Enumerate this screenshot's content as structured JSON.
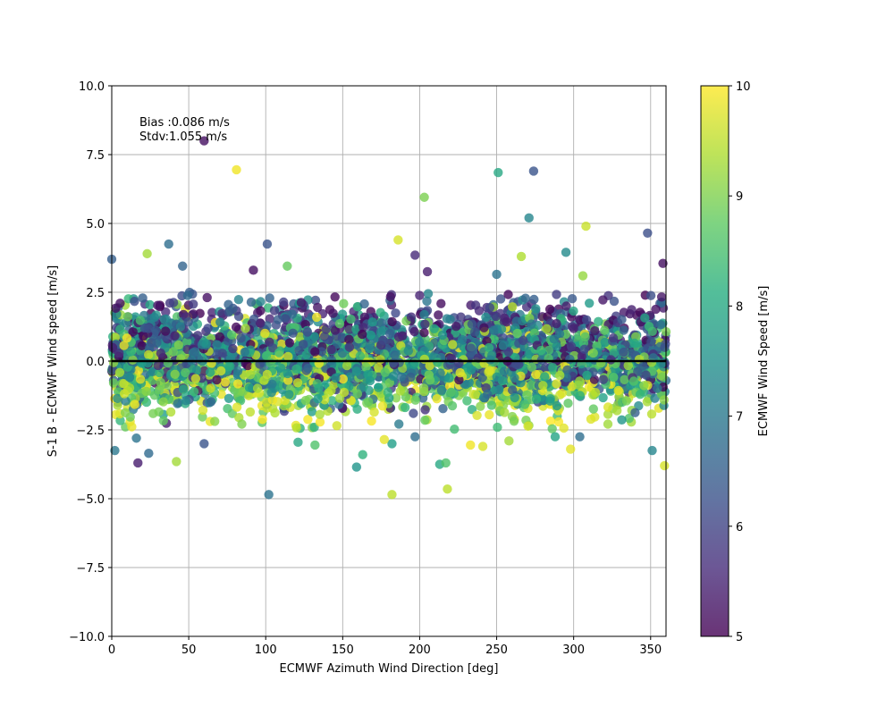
{
  "chart_data": {
    "type": "scatter",
    "title": "",
    "xlabel": "ECMWF Azimuth Wind Direction [deg]",
    "ylabel": "S-1 B - ECMWF Wind speed [m/s]",
    "xlim": [
      0,
      360
    ],
    "ylim": [
      -10,
      10
    ],
    "x_ticks": [
      0,
      50,
      100,
      150,
      200,
      250,
      300,
      350
    ],
    "y_ticks": [
      -10.0,
      -7.5,
      -5.0,
      -2.5,
      0.0,
      2.5,
      5.0,
      7.5,
      10.0
    ],
    "x_tick_labels": [
      "0",
      "50",
      "100",
      "150",
      "200",
      "250",
      "300",
      "350"
    ],
    "y_tick_labels": [
      "−10.0",
      "−7.5",
      "−5.0",
      "−2.5",
      "0.0",
      "2.5",
      "5.0",
      "7.5",
      "10.0"
    ],
    "grid": true,
    "reference_line_y": 0.0,
    "annotation": {
      "bias": "Bias :0.086 m/s",
      "stdv": "Stdv:1.055 m/s"
    },
    "colorbar": {
      "label": "ECMWF Wind Speed [m/s]",
      "min": 5,
      "max": 10,
      "ticks": [
        "5",
        "6",
        "7",
        "8",
        "9",
        "10"
      ],
      "colormap": "viridis"
    },
    "marker_alpha": 0.8,
    "distribution": {
      "bulk_ymin": -2.5,
      "bulk_ymax": 2.5,
      "bias": 0.086,
      "stdv": 1.055
    },
    "outliers": [
      {
        "x": 0,
        "y": 3.7,
        "c": 6.5
      },
      {
        "x": 60,
        "y": 8.0,
        "c": 5.2
      },
      {
        "x": 81,
        "y": 6.95,
        "c": 9.9
      },
      {
        "x": 251,
        "y": 6.85,
        "c": 8.0
      },
      {
        "x": 274,
        "y": 6.9,
        "c": 6.3
      },
      {
        "x": 203,
        "y": 5.95,
        "c": 9.0
      },
      {
        "x": 271,
        "y": 5.2,
        "c": 7.3
      },
      {
        "x": 308,
        "y": 4.9,
        "c": 9.6
      },
      {
        "x": 348,
        "y": 4.65,
        "c": 6.2
      },
      {
        "x": 186,
        "y": 4.4,
        "c": 9.7
      },
      {
        "x": 37,
        "y": 4.25,
        "c": 6.8
      },
      {
        "x": 101,
        "y": 4.25,
        "c": 6.3
      },
      {
        "x": 23,
        "y": 3.9,
        "c": 9.3
      },
      {
        "x": 295,
        "y": 3.95,
        "c": 7.4
      },
      {
        "x": 197,
        "y": 3.85,
        "c": 5.6
      },
      {
        "x": 266,
        "y": 3.8,
        "c": 9.4
      },
      {
        "x": 358,
        "y": 3.55,
        "c": 5.2
      },
      {
        "x": 114,
        "y": 3.45,
        "c": 8.8
      },
      {
        "x": 46,
        "y": 3.45,
        "c": 6.6
      },
      {
        "x": 250,
        "y": 3.15,
        "c": 6.9
      },
      {
        "x": 306,
        "y": 3.1,
        "c": 9.2
      },
      {
        "x": 92,
        "y": 3.3,
        "c": 5.2
      },
      {
        "x": 205,
        "y": 3.25,
        "c": 5.4
      },
      {
        "x": 102,
        "y": -4.85,
        "c": 6.9
      },
      {
        "x": 182,
        "y": -4.85,
        "c": 9.5
      },
      {
        "x": 218,
        "y": -4.65,
        "c": 9.5
      },
      {
        "x": 159,
        "y": -3.85,
        "c": 7.6
      },
      {
        "x": 213,
        "y": -3.75,
        "c": 8.0
      },
      {
        "x": 217,
        "y": -3.7,
        "c": 8.6
      },
      {
        "x": 17,
        "y": -3.7,
        "c": 5.4
      },
      {
        "x": 42,
        "y": -3.65,
        "c": 9.3
      },
      {
        "x": 359,
        "y": -3.8,
        "c": 9.7
      },
      {
        "x": 163,
        "y": -3.4,
        "c": 8.2
      },
      {
        "x": 24,
        "y": -3.35,
        "c": 6.7
      },
      {
        "x": 351,
        "y": -3.25,
        "c": 7.3
      },
      {
        "x": 2,
        "y": -3.25,
        "c": 7.0
      },
      {
        "x": 298,
        "y": -3.2,
        "c": 9.8
      },
      {
        "x": 241,
        "y": -3.1,
        "c": 9.7
      },
      {
        "x": 233,
        "y": -3.05,
        "c": 9.9
      },
      {
        "x": 132,
        "y": -3.05,
        "c": 8.6
      },
      {
        "x": 60,
        "y": -3.0,
        "c": 6.3
      },
      {
        "x": 182,
        "y": -3.0,
        "c": 7.8
      },
      {
        "x": 121,
        "y": -2.95,
        "c": 8.0
      },
      {
        "x": 258,
        "y": -2.9,
        "c": 9.3
      },
      {
        "x": 177,
        "y": -2.85,
        "c": 9.8
      },
      {
        "x": 288,
        "y": -2.75,
        "c": 7.9
      },
      {
        "x": 197,
        "y": -2.75,
        "c": 6.8
      },
      {
        "x": 304,
        "y": -2.75,
        "c": 6.8
      },
      {
        "x": 16,
        "y": -2.8,
        "c": 6.9
      }
    ]
  }
}
